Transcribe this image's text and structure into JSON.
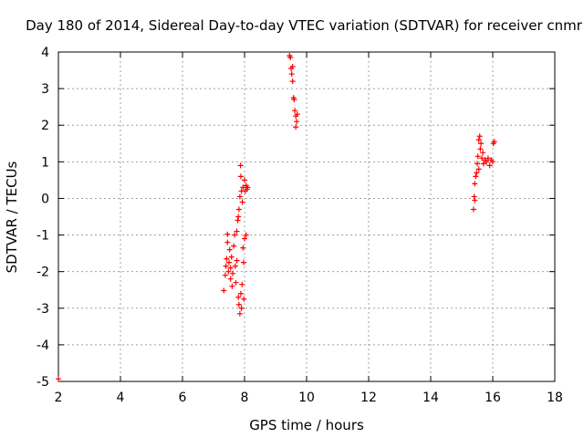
{
  "chart_data": {
    "type": "scatter",
    "title": "Day 180 of 2014, Sidereal Day-to-day VTEC variation (SDTVAR) for receiver cnmr",
    "xlabel": "GPS time / hours",
    "ylabel": "SDTVAR / TECUs",
    "xlim": [
      2,
      18
    ],
    "ylim": [
      -5,
      4
    ],
    "xticks": [
      2,
      4,
      6,
      8,
      10,
      12,
      14,
      16,
      18
    ],
    "yticks": [
      -5,
      -4,
      -3,
      -2,
      -1,
      0,
      1,
      2,
      3,
      4
    ],
    "grid": true,
    "marker": "plus",
    "color": "#ff0000",
    "series": [
      {
        "name": "SDTVAR",
        "points": [
          [
            2.0,
            -4.93
          ],
          [
            7.33,
            -2.52
          ],
          [
            7.38,
            -2.1
          ],
          [
            7.4,
            -1.85
          ],
          [
            7.42,
            -1.65
          ],
          [
            7.45,
            -1.2
          ],
          [
            7.45,
            -0.98
          ],
          [
            7.48,
            -2.0
          ],
          [
            7.5,
            -1.75
          ],
          [
            7.52,
            -1.4
          ],
          [
            7.55,
            -2.2
          ],
          [
            7.55,
            -1.9
          ],
          [
            7.58,
            -1.6
          ],
          [
            7.6,
            -2.4
          ],
          [
            7.62,
            -2.05
          ],
          [
            7.65,
            -1.3
          ],
          [
            7.68,
            -1.0
          ],
          [
            7.7,
            -1.85
          ],
          [
            7.72,
            -2.3
          ],
          [
            7.75,
            -1.7
          ],
          [
            7.75,
            -0.9
          ],
          [
            7.78,
            -0.6
          ],
          [
            7.8,
            -2.7
          ],
          [
            7.8,
            -0.5
          ],
          [
            7.82,
            -0.3
          ],
          [
            7.82,
            -2.9
          ],
          [
            7.85,
            -3.15
          ],
          [
            7.85,
            0.05
          ],
          [
            7.87,
            0.9
          ],
          [
            7.88,
            0.6
          ],
          [
            7.88,
            -2.6
          ],
          [
            7.9,
            -3.0
          ],
          [
            7.9,
            0.2
          ],
          [
            7.92,
            -2.35
          ],
          [
            7.93,
            -0.1
          ],
          [
            7.95,
            -1.35
          ],
          [
            7.95,
            0.3
          ],
          [
            7.97,
            -1.75
          ],
          [
            7.98,
            -2.75
          ],
          [
            8.0,
            0.5
          ],
          [
            8.0,
            -1.1
          ],
          [
            8.02,
            0.2
          ],
          [
            8.05,
            -1.0
          ],
          [
            8.05,
            0.35
          ],
          [
            8.08,
            0.25
          ],
          [
            8.1,
            0.3
          ],
          [
            9.45,
            3.9
          ],
          [
            9.48,
            3.85
          ],
          [
            9.5,
            3.55
          ],
          [
            9.52,
            3.4
          ],
          [
            9.55,
            3.6
          ],
          [
            9.55,
            3.2
          ],
          [
            9.58,
            2.75
          ],
          [
            9.6,
            2.7
          ],
          [
            9.62,
            2.4
          ],
          [
            9.65,
            2.25
          ],
          [
            9.65,
            1.95
          ],
          [
            9.68,
            2.1
          ],
          [
            9.7,
            2.3
          ],
          [
            15.38,
            -0.3
          ],
          [
            15.4,
            0.05
          ],
          [
            15.42,
            -0.05
          ],
          [
            15.42,
            0.4
          ],
          [
            15.45,
            0.6
          ],
          [
            15.48,
            0.7
          ],
          [
            15.5,
            0.95
          ],
          [
            15.52,
            1.15
          ],
          [
            15.55,
            1.6
          ],
          [
            15.55,
            0.8
          ],
          [
            15.58,
            1.7
          ],
          [
            15.6,
            1.35
          ],
          [
            15.62,
            1.5
          ],
          [
            15.65,
            1.1
          ],
          [
            15.68,
            1.25
          ],
          [
            15.7,
            0.95
          ],
          [
            15.75,
            1.05
          ],
          [
            15.8,
            1.0
          ],
          [
            15.85,
            1.1
          ],
          [
            15.9,
            0.9
          ],
          [
            15.95,
            1.05
          ],
          [
            16.0,
            1.0
          ],
          [
            16.02,
            1.5
          ],
          [
            16.05,
            1.55
          ]
        ]
      }
    ]
  }
}
